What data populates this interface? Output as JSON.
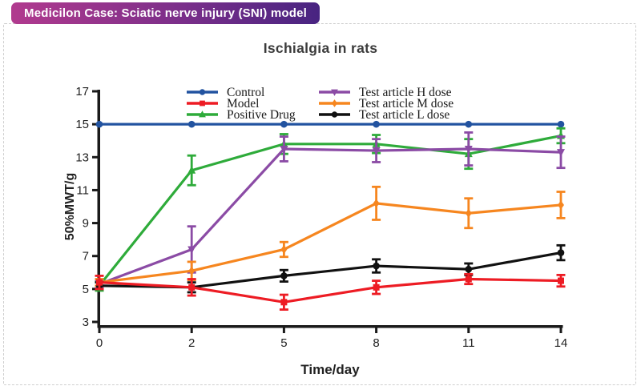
{
  "header": {
    "badge_text": "Medicilon Case: Sciatic nerve injury (SNI) model",
    "badge_color_left": "#b13a8e",
    "badge_color_right": "#482481"
  },
  "chart_data": {
    "type": "line",
    "title": "Ischialgia in rats",
    "xlabel": "Time/day",
    "ylabel": "50%MWT/g",
    "x": [
      0,
      2,
      5,
      8,
      11,
      14
    ],
    "yticks": [
      3,
      5,
      7,
      9,
      11,
      13,
      15,
      17
    ],
    "ylim": [
      3,
      17
    ],
    "grid": false,
    "legend_position": "inside-top, two columns",
    "axis_color": "#1a1a1a",
    "series": [
      {
        "name": "Control",
        "color": "#2253a0",
        "marker": "circle",
        "values": [
          15,
          15,
          15,
          15,
          15,
          15
        ],
        "errors": [
          0,
          0,
          0,
          0,
          0,
          0
        ]
      },
      {
        "name": "Model",
        "color": "#ed1c24",
        "marker": "square",
        "values": [
          5.4,
          5.1,
          4.2,
          5.1,
          5.6,
          5.5
        ],
        "errors": [
          0.4,
          0.5,
          0.45,
          0.4,
          0.3,
          0.35
        ]
      },
      {
        "name": "Positive Drug",
        "color": "#2eab3a",
        "marker": "triangle-up",
        "values": [
          5.2,
          12.2,
          13.8,
          13.8,
          13.2,
          14.3
        ],
        "errors": [
          0.3,
          0.9,
          0.6,
          0.55,
          0.9,
          0.45
        ]
      },
      {
        "name": "Test article H dose",
        "color": "#8b4ba5",
        "marker": "triangle-down",
        "values": [
          5.3,
          7.4,
          13.5,
          13.4,
          13.5,
          13.3
        ],
        "errors": [
          0.25,
          1.4,
          0.75,
          0.7,
          1.0,
          0.95
        ]
      },
      {
        "name": "Test article M dose",
        "color": "#f6861f",
        "marker": "diamond",
        "values": [
          5.4,
          6.1,
          7.4,
          10.2,
          9.6,
          10.1
        ],
        "errors": [
          0.2,
          0.55,
          0.45,
          1.0,
          0.9,
          0.8
        ]
      },
      {
        "name": "Test article L dose",
        "color": "#111111",
        "marker": "circle",
        "values": [
          5.2,
          5.1,
          5.8,
          6.4,
          6.2,
          7.2
        ],
        "errors": [
          0.2,
          0.3,
          0.35,
          0.4,
          0.35,
          0.45
        ]
      }
    ]
  }
}
